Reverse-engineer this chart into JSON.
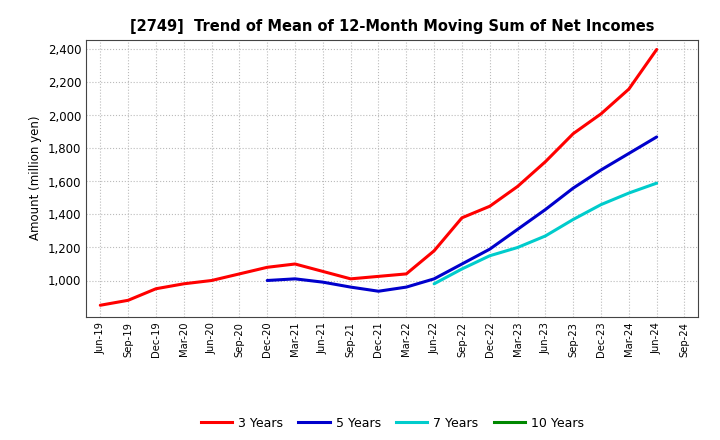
{
  "title": "[2749]  Trend of Mean of 12-Month Moving Sum of Net Incomes",
  "ylabel": "Amount (million yen)",
  "background_color": "#ffffff",
  "grid_color": "#bbbbbb",
  "x_labels": [
    "Jun-19",
    "Sep-19",
    "Dec-19",
    "Mar-20",
    "Jun-20",
    "Sep-20",
    "Dec-20",
    "Mar-21",
    "Jun-21",
    "Sep-21",
    "Dec-21",
    "Mar-22",
    "Jun-22",
    "Sep-22",
    "Dec-22",
    "Mar-23",
    "Jun-23",
    "Sep-23",
    "Dec-23",
    "Mar-24",
    "Jun-24",
    "Sep-24"
  ],
  "series": {
    "3 Years": {
      "color": "#ff0000",
      "data": [
        850,
        880,
        950,
        980,
        1000,
        1040,
        1080,
        1100,
        1055,
        1010,
        1025,
        1040,
        1180,
        1380,
        1450,
        1570,
        1720,
        1890,
        2010,
        2160,
        2400,
        null
      ]
    },
    "5 Years": {
      "color": "#0000cc",
      "data": [
        null,
        null,
        null,
        null,
        null,
        null,
        1000,
        1010,
        990,
        960,
        935,
        960,
        1010,
        1100,
        1190,
        1310,
        1430,
        1560,
        1670,
        1770,
        1870,
        null
      ]
    },
    "7 Years": {
      "color": "#00cccc",
      "data": [
        null,
        null,
        null,
        null,
        null,
        null,
        null,
        null,
        null,
        null,
        null,
        null,
        980,
        1070,
        1150,
        1200,
        1270,
        1370,
        1460,
        1530,
        1590,
        null
      ]
    },
    "10 Years": {
      "color": "#008800",
      "data": [
        null,
        null,
        null,
        null,
        null,
        null,
        null,
        null,
        null,
        null,
        null,
        null,
        null,
        null,
        null,
        null,
        null,
        null,
        null,
        null,
        null,
        null
      ]
    }
  },
  "ylim": [
    780,
    2460
  ],
  "yticks": [
    1000,
    1200,
    1400,
    1600,
    1800,
    2000,
    2200,
    2400
  ],
  "ytick_labels": [
    "1,000",
    "1,200",
    "1,400",
    "1,600",
    "1,800",
    "2,000",
    "2,200",
    "2,400"
  ],
  "legend_entries": [
    "3 Years",
    "5 Years",
    "7 Years",
    "10 Years"
  ],
  "legend_colors": [
    "#ff0000",
    "#0000cc",
    "#00cccc",
    "#008800"
  ]
}
